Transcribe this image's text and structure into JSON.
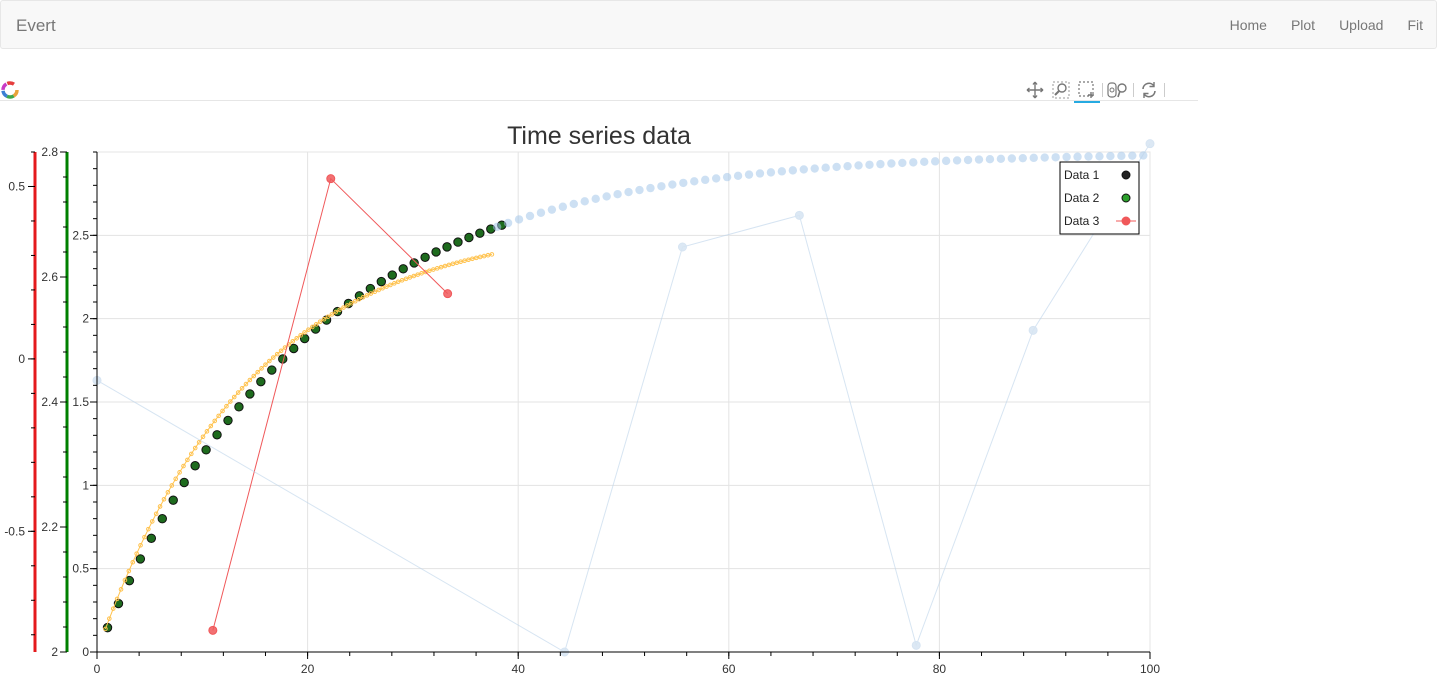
{
  "navbar": {
    "brand": "Evert",
    "links": [
      "Home",
      "Plot",
      "Upload",
      "Fit"
    ]
  },
  "toolbar": {
    "tools": [
      "pan-icon",
      "wheel-zoom-icon",
      "box-zoom-icon",
      "hover-icon",
      "reset-icon"
    ],
    "active_tool": "box-zoom-icon",
    "accent": "#26aae1"
  },
  "chart_data": {
    "type": "scatter",
    "title": "Time series data",
    "xlim": [
      0,
      100
    ],
    "x_ticks": [
      0,
      20,
      40,
      60,
      80,
      100
    ],
    "axes": {
      "y_main": {
        "range": [
          0,
          3
        ],
        "ticks": [
          0,
          0.5,
          1,
          1.5,
          2,
          2.5
        ]
      },
      "y_green": {
        "range": [
          2.0,
          2.8
        ],
        "ticks": [
          2,
          2.2,
          2.4,
          2.6,
          2.8
        ],
        "color": "#008000"
      },
      "y_red": {
        "range": [
          -0.85,
          0.6
        ],
        "ticks": [
          -0.5,
          0,
          0.5
        ],
        "color": "#e41a1c"
      }
    },
    "legend": {
      "location": "top-right",
      "items": [
        {
          "label": "Data 1",
          "color": "#222222",
          "glyph": "circle"
        },
        {
          "label": "Data 2",
          "color": "#2ca02c",
          "glyph": "circle"
        },
        {
          "label": "Data 3",
          "color": "#f0585a",
          "glyph": "line-circle"
        }
      ]
    },
    "series": [
      {
        "name": "Data 1",
        "kind": "saturating_markers",
        "amplitude": 3,
        "tau": 20,
        "x_start": 1,
        "x_step": 1.04,
        "count": 37,
        "color": "#1e6b1e",
        "edge": "#111111"
      },
      {
        "kind": "saturating_markers",
        "amplitude": 3,
        "tau": 20,
        "x_start": 38,
        "x_step": 1.04,
        "count": 60,
        "color": "#a6c8ea",
        "alpha": 0.55
      },
      {
        "kind": "saturating_line_markers",
        "amplitude": 2.58,
        "tau": 14.5,
        "x_start": 0.8,
        "x_end": 37.5,
        "count": 100,
        "color": "#ffc24d"
      },
      {
        "name": "Data 3",
        "kind": "line_markers",
        "axis": "y_main",
        "x": [
          11,
          22.2,
          33.3
        ],
        "y": [
          0.13,
          2.84,
          2.15
        ],
        "color": "#f0585a"
      },
      {
        "kind": "line_markers",
        "axis": "y_main",
        "x": [
          0,
          44.4,
          55.6,
          66.7,
          77.8,
          88.9,
          100
        ],
        "y": [
          1.63,
          0,
          2.43,
          2.62,
          0.04,
          1.93,
          3.05
        ],
        "color": "#bcd3ea",
        "alpha": 0.6
      }
    ]
  }
}
